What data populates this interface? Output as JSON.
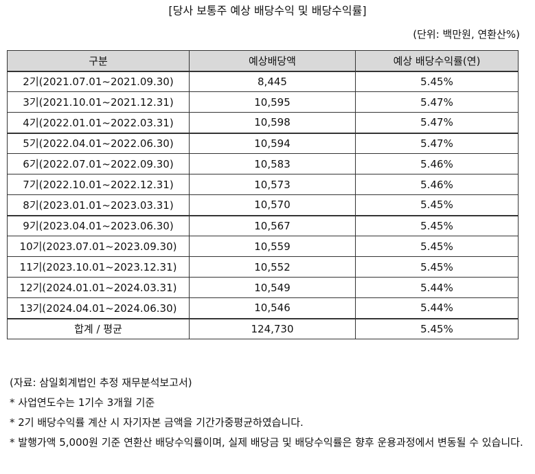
{
  "title": "[당사 보통주 예상 배당수익 및 배당수익률]",
  "unit": "(단위: 백만원, 연환산%)",
  "table": {
    "headers": [
      "구분",
      "예상배당액",
      "예상 배당수익률(연)"
    ],
    "rows": [
      {
        "period": "2기(2021.07.01~2021.09.30)",
        "amount": "8,445",
        "yield": "5.45%"
      },
      {
        "period": "3기(2021.10.01~2021.12.31)",
        "amount": "10,595",
        "yield": "5.47%"
      },
      {
        "period": "4기(2022.01.01~2022.03.31)",
        "amount": "10,598",
        "yield": "5.47%"
      },
      {
        "period": "5기(2022.04.01~2022.06.30)",
        "amount": "10,594",
        "yield": "5.47%"
      },
      {
        "period": "6기(2022.07.01~2022.09.30)",
        "amount": "10,583",
        "yield": "5.46%"
      },
      {
        "period": "7기(2022.10.01~2022.12.31)",
        "amount": "10,573",
        "yield": "5.46%"
      },
      {
        "period": "8기(2023.01.01~2023.03.31)",
        "amount": "10,570",
        "yield": "5.45%"
      },
      {
        "period": "9기(2023.04.01~2023.06.30)",
        "amount": "10,567",
        "yield": "5.45%"
      },
      {
        "period": "10기(2023.07.01~2023.09.30)",
        "amount": "10,559",
        "yield": "5.45%"
      },
      {
        "period": "11기(2023.10.01~2023.12.31)",
        "amount": "10,552",
        "yield": "5.45%"
      },
      {
        "period": "12기(2024.01.01~2024.03.31)",
        "amount": "10,549",
        "yield": "5.44%"
      },
      {
        "period": "13기(2024.04.01~2024.06.30)",
        "amount": "10,546",
        "yield": "5.44%"
      }
    ],
    "total": {
      "period": "합계 / 평균",
      "amount": "124,730",
      "yield": "5.45%"
    }
  },
  "notes": {
    "source": "(자료: 삼일회계법인 추정 재무분석보고서)",
    "items": [
      "* 사업연도수는 1기수 3개월 기준",
      "* 2기 배당수익률 계산 시 자기자본 금액을 기간가중평균하였습니다.",
      "* 발행가액 5,000원 기준 연환산 배당수익률이며, 실제 배당금 및 배당수익률은 향후 운용과정에서 변동될 수 있습니다."
    ]
  }
}
